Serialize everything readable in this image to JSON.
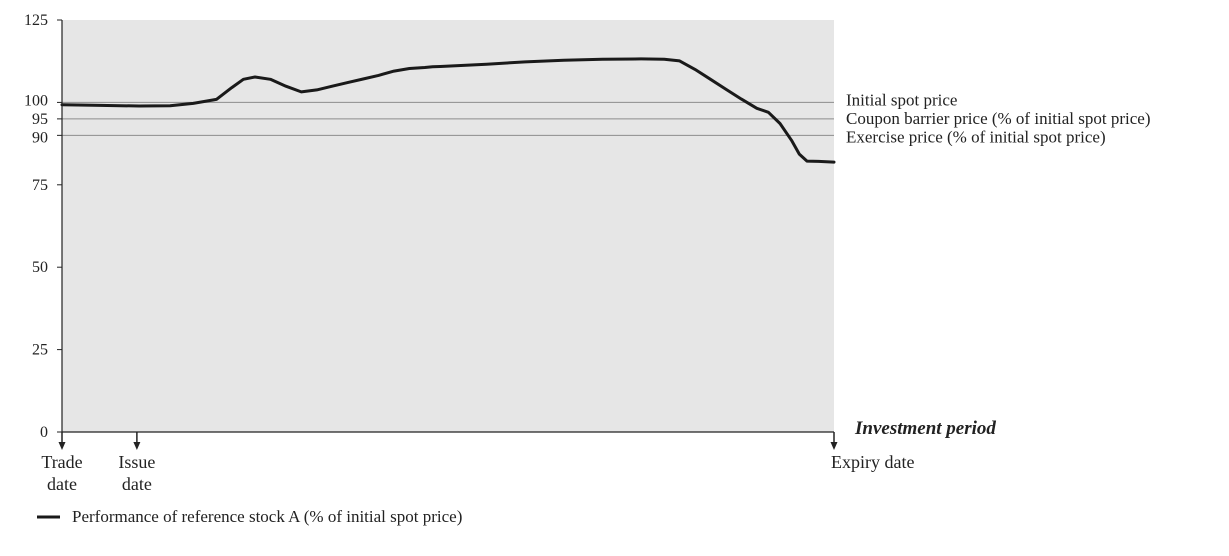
{
  "chart_data": {
    "type": "line",
    "title": "",
    "xlabel": "Investment period",
    "ylabel": "",
    "xlim": [
      0,
      100
    ],
    "ylim": [
      0,
      125
    ],
    "yticks": [
      0,
      25,
      50,
      75,
      90,
      95,
      100,
      125
    ],
    "grid": false,
    "reference_lines": [
      {
        "value": 100,
        "label": "Initial spot price"
      },
      {
        "value": 95,
        "label": "Coupon barrier price (% of initial spot price)"
      },
      {
        "value": 90,
        "label": "Exercise price (% of initial spot price)"
      }
    ],
    "date_markers": [
      {
        "x": 0,
        "lines": [
          "Trade",
          "date"
        ],
        "align": "middle"
      },
      {
        "x": 9.7,
        "lines": [
          "Issue",
          "date"
        ],
        "align": "middle"
      },
      {
        "x": 100,
        "lines": [
          "Expiry date"
        ],
        "align": "start"
      }
    ],
    "series": [
      {
        "name": "Performance of reference stock A (% of initial spot price)",
        "color": "#1a1a1a",
        "x": [
          0,
          5,
          10,
          14,
          17,
          20,
          22,
          23.5,
          25,
          27,
          29,
          31,
          33,
          35,
          37,
          39,
          41,
          43,
          45,
          47,
          48,
          49,
          50,
          55,
          60,
          65,
          70,
          75,
          78,
          80,
          82,
          84,
          86,
          88,
          90,
          91.5,
          93,
          94.5,
          95.5,
          96.5,
          98,
          100
        ],
        "y": [
          99.3,
          99.1,
          98.9,
          99,
          99.7,
          100.9,
          104.5,
          107,
          107.7,
          107,
          104.9,
          103.2,
          103.8,
          104.9,
          106,
          107.1,
          108.2,
          109.5,
          110.3,
          110.6,
          110.8,
          110.9,
          111,
          111.6,
          112.3,
          112.8,
          113.1,
          113.2,
          113.1,
          112.6,
          110,
          107,
          104,
          101,
          98.2,
          97,
          93.6,
          88.5,
          84.3,
          82.2,
          82.1,
          81.9
        ]
      }
    ],
    "legend": {
      "position": "bottom-left"
    }
  }
}
